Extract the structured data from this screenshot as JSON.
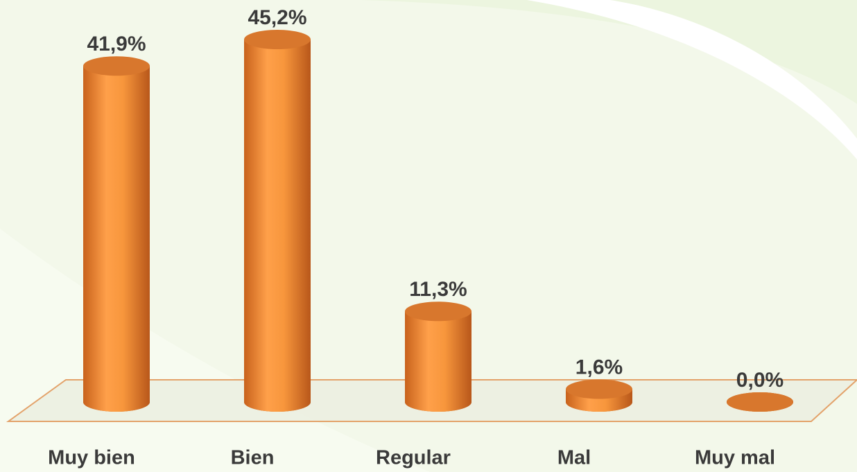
{
  "chart_data": {
    "type": "bar3d",
    "categories": [
      "Muy bien",
      "Bien",
      "Regular",
      "Mal",
      "Muy mal"
    ],
    "values": [
      41.9,
      45.2,
      11.3,
      1.6,
      0.0
    ],
    "value_labels": [
      "41,9%",
      "45,2%",
      "11,3%",
      "1,6%",
      "0,0%"
    ],
    "color": "#f7963c"
  }
}
